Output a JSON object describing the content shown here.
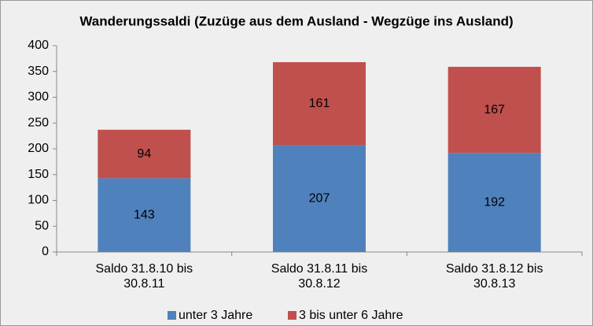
{
  "chart_data": {
    "type": "stacked_bar",
    "title": "Wanderungssaldi (Zuzüge aus dem Ausland - Wegzüge ins Ausland)",
    "categories": [
      "Saldo 31.8.10 bis 30.8.11",
      "Saldo 31.8.11 bis 30.8.12",
      "Saldo 31.8.12 bis 30.8.13"
    ],
    "series": [
      {
        "name": "unter 3 Jahre",
        "color": "#4f81bd",
        "values": [
          143,
          207,
          192
        ]
      },
      {
        "name": "3 bis unter 6 Jahre",
        "color": "#c0504d",
        "values": [
          94,
          161,
          167
        ]
      }
    ],
    "ylim": [
      0,
      400
    ],
    "yticks": [
      0,
      50,
      100,
      150,
      200,
      250,
      300,
      350,
      400
    ],
    "grid": false,
    "legend": "bottom"
  }
}
